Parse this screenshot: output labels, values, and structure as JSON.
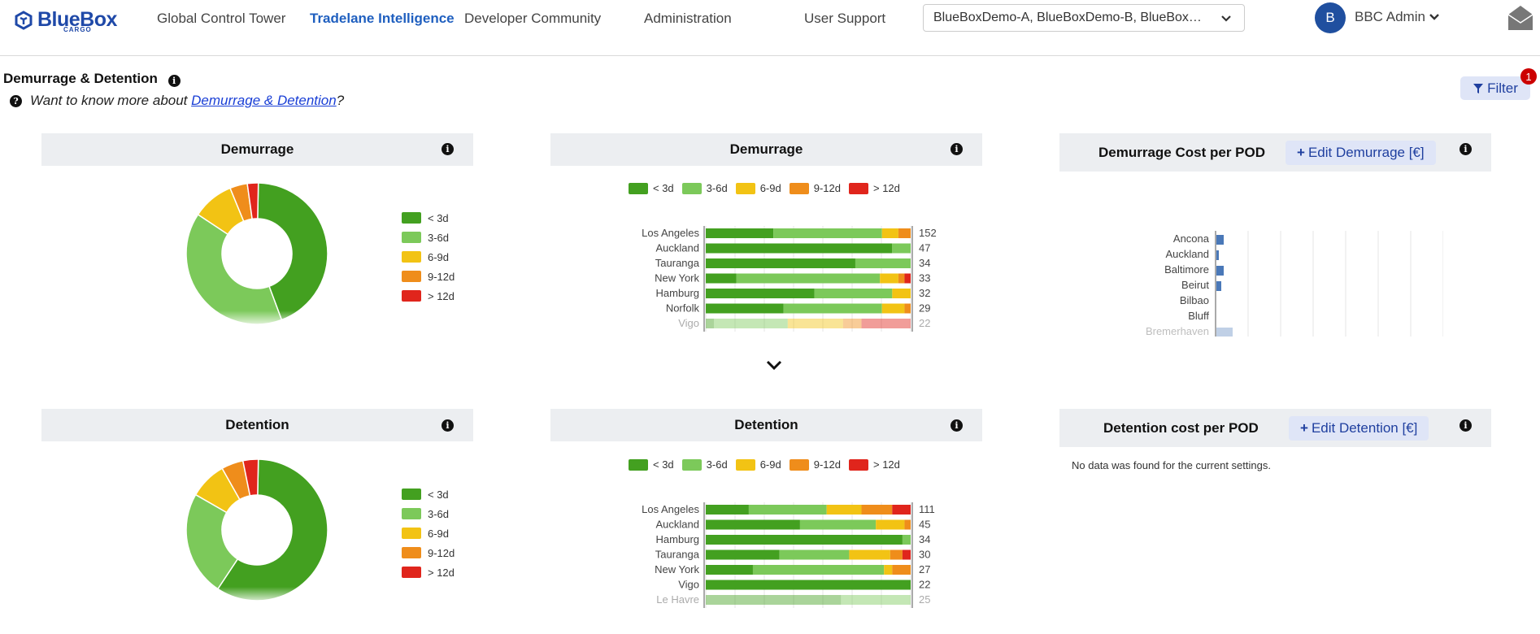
{
  "header": {
    "logo_text": "BlueBox",
    "logo_sub": "CARGO",
    "nav": [
      "Global Control Tower",
      "Tradelane Intelligence",
      "Developer Community",
      "Administration",
      "User Support"
    ],
    "tenants": "BlueBoxDemo-A, BlueBoxDemo-B, BlueBoxDemo-C",
    "avatar_initial": "B",
    "user": "BBC Admin"
  },
  "page": {
    "title": "Demurrage & Detention",
    "help_prefix": "Want to know more about ",
    "help_link": "Demurrage & Detention",
    "help_suffix": "?",
    "filter_label": "Filter",
    "filter_count": "1"
  },
  "legend": [
    "< 3d",
    "3-6d",
    "6-9d",
    "9-12d",
    "> 12d"
  ],
  "colors": [
    "#43a020",
    "#7cc95a",
    "#f2c314",
    "#ef8d1b",
    "#e0251c"
  ],
  "demurrage": {
    "donut_title": "Demurrage",
    "bar_title": "Demurrage",
    "donut_shares": [
      0.44,
      0.4,
      0.095,
      0.04,
      0.025
    ],
    "ports": [
      "Los Angeles",
      "Auckland",
      "Tauranga",
      "New York",
      "Hamburg",
      "Norfolk",
      "Vigo"
    ],
    "totals": [
      152,
      47,
      34,
      33,
      32,
      29,
      22
    ],
    "bars": [
      [
        0.33,
        0.53,
        0.08,
        0.06,
        0.0
      ],
      [
        0.91,
        0.09,
        0.0,
        0.0,
        0.0
      ],
      [
        0.73,
        0.27,
        0.0,
        0.0,
        0.0
      ],
      [
        0.15,
        0.7,
        0.09,
        0.03,
        0.03
      ],
      [
        0.53,
        0.38,
        0.09,
        0.0,
        0.0
      ],
      [
        0.38,
        0.48,
        0.11,
        0.03,
        0.0
      ],
      [
        0.04,
        0.36,
        0.27,
        0.09,
        0.24
      ]
    ],
    "cost_title": "Demurrage Cost per POD",
    "edit_label": "Edit Demurrage [€]",
    "cost_ports": [
      "Ancona",
      "Auckland",
      "Baltimore",
      "Beirut",
      "Bilbao",
      "Bluff",
      "Bremerhaven"
    ],
    "cost_values": [
      0.9,
      0.3,
      0.9,
      0.6,
      0.0,
      0.0,
      2.0
    ]
  },
  "detention": {
    "donut_title": "Detention",
    "bar_title": "Detention",
    "donut_shares": [
      0.59,
      0.24,
      0.085,
      0.05,
      0.035
    ],
    "ports": [
      "Los Angeles",
      "Auckland",
      "Hamburg",
      "Tauranga",
      "New York",
      "Vigo",
      "Le Havre"
    ],
    "totals": [
      111,
      45,
      34,
      30,
      27,
      22,
      25
    ],
    "bars": [
      [
        0.21,
        0.38,
        0.17,
        0.15,
        0.09
      ],
      [
        0.46,
        0.37,
        0.14,
        0.03,
        0.0
      ],
      [
        0.96,
        0.04,
        0.0,
        0.0,
        0.0
      ],
      [
        0.36,
        0.34,
        0.2,
        0.06,
        0.04
      ],
      [
        0.23,
        0.64,
        0.04,
        0.09,
        0.0
      ],
      [
        1.0,
        0.0,
        0.0,
        0.0,
        0.0
      ],
      [
        0.66,
        0.34,
        0.0,
        0.0,
        0.0
      ]
    ],
    "cost_title": "Detention cost per POD",
    "edit_label": "Edit Detention [€]",
    "no_data": "No data was found for the current settings."
  }
}
